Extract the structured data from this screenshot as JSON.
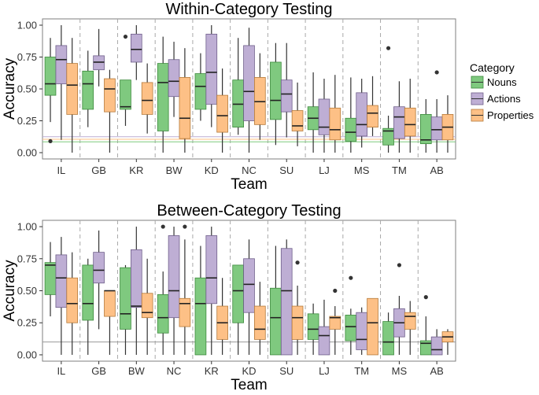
{
  "chart_data": [
    {
      "type": "boxplot",
      "title": "Within-Category Testing",
      "xlabel": "Team",
      "ylabel": "Accuracy",
      "ylim": [
        0,
        1
      ],
      "yticks": [
        "0.00",
        "0.25",
        "0.50",
        "0.75",
        "1.00"
      ],
      "grid": false,
      "legend_position": "right",
      "categories": [
        "IL",
        "GB",
        "KR",
        "BW",
        "KD",
        "NC",
        "SU",
        "LJ",
        "MS",
        "TM",
        "AB"
      ],
      "reference_lines": [
        {
          "series": "Nouns",
          "y": 0.085
        },
        {
          "series": "Actions",
          "y": 0.125
        },
        {
          "series": "Properties",
          "y": 0.105
        }
      ],
      "series": [
        {
          "name": "Nouns",
          "color": "#7fc97f",
          "boxes": [
            {
              "min": 0.24,
              "q1": 0.45,
              "median": 0.54,
              "q3": 0.75,
              "max": 0.9,
              "outliers": [
                0.09
              ]
            },
            {
              "min": 0.2,
              "q1": 0.34,
              "median": 0.54,
              "q3": 0.64,
              "max": 0.8,
              "outliers": []
            },
            {
              "min": 0.21,
              "q1": 0.34,
              "median": 0.36,
              "q3": 0.57,
              "max": 0.57,
              "outliers": [
                0.91
              ]
            },
            {
              "min": 0.0,
              "q1": 0.17,
              "median": 0.55,
              "q3": 0.7,
              "max": 0.91,
              "outliers": []
            },
            {
              "min": 0.25,
              "q1": 0.34,
              "median": 0.52,
              "q3": 0.62,
              "max": 0.78,
              "outliers": []
            },
            {
              "min": 0.14,
              "q1": 0.2,
              "median": 0.38,
              "q3": 0.57,
              "max": 0.9,
              "outliers": []
            },
            {
              "min": 0.06,
              "q1": 0.26,
              "median": 0.41,
              "q3": 0.71,
              "max": 0.86,
              "outliers": []
            },
            {
              "min": 0.0,
              "q1": 0.18,
              "median": 0.27,
              "q3": 0.36,
              "max": 0.63,
              "outliers": []
            },
            {
              "min": 0.0,
              "q1": 0.09,
              "median": 0.16,
              "q3": 0.27,
              "max": 0.59,
              "outliers": []
            },
            {
              "min": 0.0,
              "q1": 0.06,
              "median": 0.17,
              "q3": 0.19,
              "max": 0.29,
              "outliers": [
                0.82
              ]
            },
            {
              "min": 0.0,
              "q1": 0.07,
              "median": 0.1,
              "q3": 0.3,
              "max": 0.42,
              "outliers": []
            }
          ]
        },
        {
          "name": "Actions",
          "color": "#beaed4",
          "boxes": [
            {
              "min": 0.1,
              "q1": 0.54,
              "median": 0.73,
              "q3": 0.84,
              "max": 1.0,
              "outliers": []
            },
            {
              "min": 0.52,
              "q1": 0.65,
              "median": 0.71,
              "q3": 0.76,
              "max": 0.97,
              "outliers": []
            },
            {
              "min": 0.57,
              "q1": 0.71,
              "median": 0.81,
              "q3": 0.93,
              "max": 1.0,
              "outliers": []
            },
            {
              "min": 0.28,
              "q1": 0.44,
              "median": 0.56,
              "q3": 0.73,
              "max": 0.87,
              "outliers": []
            },
            {
              "min": 0.2,
              "q1": 0.38,
              "median": 0.63,
              "q3": 0.93,
              "max": 1.0,
              "outliers": []
            },
            {
              "min": 0.0,
              "q1": 0.25,
              "median": 0.48,
              "q3": 0.84,
              "max": 0.98,
              "outliers": []
            },
            {
              "min": 0.12,
              "q1": 0.32,
              "median": 0.46,
              "q3": 0.57,
              "max": 0.86,
              "outliers": []
            },
            {
              "min": 0.0,
              "q1": 0.14,
              "median": 0.2,
              "q3": 0.42,
              "max": 0.58,
              "outliers": []
            },
            {
              "min": 0.04,
              "q1": 0.13,
              "median": 0.22,
              "q3": 0.47,
              "max": 0.58,
              "outliers": []
            },
            {
              "min": 0.0,
              "q1": 0.11,
              "median": 0.28,
              "q3": 0.36,
              "max": 0.56,
              "outliers": []
            },
            {
              "min": 0.0,
              "q1": 0.1,
              "median": 0.18,
              "q3": 0.28,
              "max": 0.42,
              "outliers": [
                0.63
              ]
            }
          ]
        },
        {
          "name": "Properties",
          "color": "#fdc086",
          "boxes": [
            {
              "min": 0.0,
              "q1": 0.3,
              "median": 0.53,
              "q3": 0.7,
              "max": 0.9,
              "outliers": []
            },
            {
              "min": 0.0,
              "q1": 0.32,
              "median": 0.5,
              "q3": 0.58,
              "max": 0.65,
              "outliers": []
            },
            {
              "min": 0.15,
              "q1": 0.3,
              "median": 0.41,
              "q3": 0.55,
              "max": 0.7,
              "outliers": []
            },
            {
              "min": 0.0,
              "q1": 0.11,
              "median": 0.27,
              "q3": 0.59,
              "max": 0.82,
              "outliers": []
            },
            {
              "min": 0.0,
              "q1": 0.16,
              "median": 0.29,
              "q3": 0.45,
              "max": 0.66,
              "outliers": []
            },
            {
              "min": 0.1,
              "q1": 0.22,
              "median": 0.4,
              "q3": 0.59,
              "max": 0.78,
              "outliers": []
            },
            {
              "min": 0.05,
              "q1": 0.17,
              "median": 0.21,
              "q3": 0.33,
              "max": 0.55,
              "outliers": []
            },
            {
              "min": 0.0,
              "q1": 0.1,
              "median": 0.18,
              "q3": 0.35,
              "max": 0.61,
              "outliers": []
            },
            {
              "min": 0.13,
              "q1": 0.2,
              "median": 0.31,
              "q3": 0.37,
              "max": 0.6,
              "outliers": []
            },
            {
              "min": 0.0,
              "q1": 0.13,
              "median": 0.22,
              "q3": 0.35,
              "max": 0.58,
              "outliers": []
            },
            {
              "min": 0.0,
              "q1": 0.1,
              "median": 0.2,
              "q3": 0.3,
              "max": 0.45,
              "outliers": []
            }
          ]
        }
      ]
    },
    {
      "type": "boxplot",
      "title": "Between-Category Testing",
      "xlabel": "Team",
      "ylabel": "Accuracy",
      "ylim": [
        0,
        1
      ],
      "yticks": [
        "0.00",
        "0.25",
        "0.50",
        "0.75",
        "1.00"
      ],
      "grid": false,
      "legend_position": "none",
      "categories": [
        "IL",
        "GB",
        "BW",
        "NC",
        "KR",
        "KD",
        "SU",
        "LJ",
        "TM",
        "MS",
        "AB"
      ],
      "reference_lines": [
        {
          "series": "all",
          "y": 0.1
        }
      ],
      "series": [
        {
          "name": "Nouns",
          "color": "#7fc97f",
          "boxes": [
            {
              "min": 0.3,
              "q1": 0.47,
              "median": 0.7,
              "q3": 0.72,
              "max": 0.88,
              "outliers": []
            },
            {
              "min": 0.0,
              "q1": 0.27,
              "median": 0.4,
              "q3": 0.7,
              "max": 0.75,
              "outliers": []
            },
            {
              "min": 0.0,
              "q1": 0.2,
              "median": 0.32,
              "q3": 0.68,
              "max": 0.7,
              "outliers": []
            },
            {
              "min": 0.0,
              "q1": 0.17,
              "median": 0.29,
              "q3": 0.47,
              "max": 0.65,
              "outliers": [
                1.0
              ]
            },
            {
              "min": 0.0,
              "q1": 0.0,
              "median": 0.4,
              "q3": 0.6,
              "max": 0.85,
              "outliers": []
            },
            {
              "min": 0.0,
              "q1": 0.25,
              "median": 0.5,
              "q3": 0.7,
              "max": 0.7,
              "outliers": []
            },
            {
              "min": 0.0,
              "q1": 0.0,
              "median": 0.29,
              "q3": 0.52,
              "max": 0.85,
              "outliers": []
            },
            {
              "min": 0.0,
              "q1": 0.12,
              "median": 0.2,
              "q3": 0.32,
              "max": 0.4,
              "outliers": []
            },
            {
              "min": 0.0,
              "q1": 0.11,
              "median": 0.22,
              "q3": 0.31,
              "max": 0.36,
              "outliers": [
                0.6
              ]
            },
            {
              "min": 0.0,
              "q1": 0.0,
              "median": 0.1,
              "q3": 0.26,
              "max": 0.33,
              "outliers": []
            },
            {
              "min": 0.0,
              "q1": 0.0,
              "median": 0.09,
              "q3": 0.11,
              "max": 0.3,
              "outliers": [
                0.45
              ]
            }
          ]
        },
        {
          "name": "Actions",
          "color": "#beaed4",
          "boxes": [
            {
              "min": 0.0,
              "q1": 0.37,
              "median": 0.6,
              "q3": 0.78,
              "max": 0.92,
              "outliers": []
            },
            {
              "min": 0.2,
              "q1": 0.56,
              "median": 0.66,
              "q3": 0.8,
              "max": 0.97,
              "outliers": []
            },
            {
              "min": 0.0,
              "q1": 0.37,
              "median": 0.38,
              "q3": 0.82,
              "max": 1.0,
              "outliers": []
            },
            {
              "min": 0.0,
              "q1": 0.29,
              "median": 0.5,
              "q3": 0.93,
              "max": 1.0,
              "outliers": []
            },
            {
              "min": 0.0,
              "q1": 0.4,
              "median": 0.6,
              "q3": 0.93,
              "max": 1.0,
              "outliers": []
            },
            {
              "min": 0.0,
              "q1": 0.33,
              "median": 0.55,
              "q3": 0.75,
              "max": 0.9,
              "outliers": []
            },
            {
              "min": 0.0,
              "q1": 0.0,
              "median": 0.5,
              "q3": 0.83,
              "max": 0.9,
              "outliers": []
            },
            {
              "min": 0.0,
              "q1": 0.0,
              "median": 0.15,
              "q3": 0.22,
              "max": 0.43,
              "outliers": []
            },
            {
              "min": 0.0,
              "q1": 0.04,
              "median": 0.12,
              "q3": 0.33,
              "max": 0.37,
              "outliers": []
            },
            {
              "min": 0.0,
              "q1": 0.14,
              "median": 0.25,
              "q3": 0.36,
              "max": 0.46,
              "outliers": [
                0.7
              ]
            },
            {
              "min": 0.0,
              "q1": 0.0,
              "median": 0.04,
              "q3": 0.14,
              "max": 0.2,
              "outliers": []
            }
          ]
        },
        {
          "name": "Properties",
          "color": "#fdc086",
          "boxes": [
            {
              "min": 0.0,
              "q1": 0.25,
              "median": 0.4,
              "q3": 0.6,
              "max": 0.8,
              "outliers": []
            },
            {
              "min": 0.0,
              "q1": 0.3,
              "median": 0.5,
              "q3": 0.5,
              "max": 0.5,
              "outliers": []
            },
            {
              "min": 0.0,
              "q1": 0.29,
              "median": 0.33,
              "q3": 0.48,
              "max": 0.75,
              "outliers": []
            },
            {
              "min": 0.0,
              "q1": 0.22,
              "median": 0.4,
              "q3": 0.44,
              "max": 0.9,
              "outliers": [
                1.0
              ]
            },
            {
              "min": 0.0,
              "q1": 0.12,
              "median": 0.25,
              "q3": 0.38,
              "max": 0.6,
              "outliers": []
            },
            {
              "min": 0.0,
              "q1": 0.12,
              "median": 0.2,
              "q3": 0.38,
              "max": 0.57,
              "outliers": []
            },
            {
              "min": 0.0,
              "q1": 0.12,
              "median": 0.29,
              "q3": 0.38,
              "max": 0.54,
              "outliers": [
                0.72
              ]
            },
            {
              "min": 0.0,
              "q1": 0.2,
              "median": 0.29,
              "q3": 0.3,
              "max": 0.38,
              "outliers": [
                0.5
              ]
            },
            {
              "min": 0.0,
              "q1": 0.0,
              "median": 0.25,
              "q3": 0.44,
              "max": 0.44,
              "outliers": []
            },
            {
              "min": 0.0,
              "q1": 0.2,
              "median": 0.3,
              "q3": 0.33,
              "max": 0.42,
              "outliers": []
            },
            {
              "min": 0.0,
              "q1": 0.1,
              "median": 0.14,
              "q3": 0.18,
              "max": 0.2,
              "outliers": []
            }
          ]
        }
      ]
    }
  ],
  "legend": {
    "title": "Category",
    "items": [
      {
        "label": "Nouns",
        "color": "#7fc97f"
      },
      {
        "label": "Actions",
        "color": "#beaed4"
      },
      {
        "label": "Properties",
        "color": "#fdc086"
      }
    ]
  }
}
